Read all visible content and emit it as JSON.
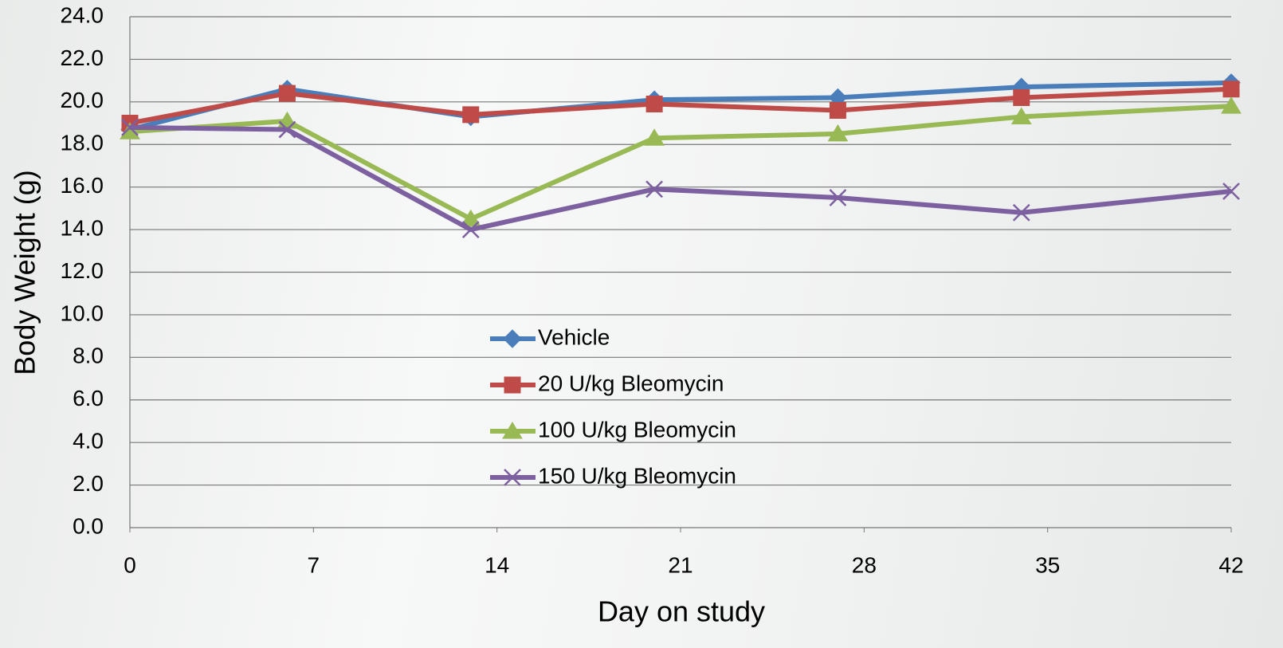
{
  "chart_data": {
    "type": "line",
    "x_label": "Day on study",
    "y_label": "Body Weight (g)",
    "x": [
      0,
      6,
      13,
      20,
      27,
      34,
      42
    ],
    "xlim": [
      0,
      42
    ],
    "xticks": [
      0,
      7,
      14,
      21,
      28,
      35,
      42
    ],
    "ylim": [
      0,
      24
    ],
    "yticks": [
      {
        "value": 0,
        "label": "0.0"
      },
      {
        "value": 2,
        "label": "2.0"
      },
      {
        "value": 4,
        "label": "4.0"
      },
      {
        "value": 6,
        "label": "6.0"
      },
      {
        "value": 8,
        "label": "8.0"
      },
      {
        "value": 10,
        "label": "10.0"
      },
      {
        "value": 12,
        "label": "12.0"
      },
      {
        "value": 14,
        "label": "14.0"
      },
      {
        "value": 16,
        "label": "16.0"
      },
      {
        "value": 18,
        "label": "18.0"
      },
      {
        "value": 20,
        "label": "20.0"
      },
      {
        "value": 22,
        "label": "22.0"
      },
      {
        "value": 24,
        "label": "24.0"
      }
    ],
    "grid": true,
    "series": [
      {
        "name": "Vehicle",
        "color": "#4a7ebb",
        "marker": "diamond",
        "values": [
          18.7,
          20.6,
          19.3,
          20.1,
          20.2,
          20.7,
          20.9
        ]
      },
      {
        "name": "20 U/kg Bleomycin",
        "color": "#be4b48",
        "marker": "square",
        "values": [
          19.0,
          20.4,
          19.4,
          19.9,
          19.6,
          20.2,
          20.6
        ]
      },
      {
        "name": "100 U/kg Bleomycin",
        "color": "#98b954",
        "marker": "triangle",
        "values": [
          18.6,
          19.1,
          14.5,
          18.3,
          18.5,
          19.3,
          19.8
        ]
      },
      {
        "name": "150 U/kg Bleomycin",
        "color": "#7d60a0",
        "marker": "x",
        "values": [
          18.8,
          18.7,
          14.0,
          15.9,
          15.5,
          14.8,
          15.8
        ]
      }
    ]
  }
}
